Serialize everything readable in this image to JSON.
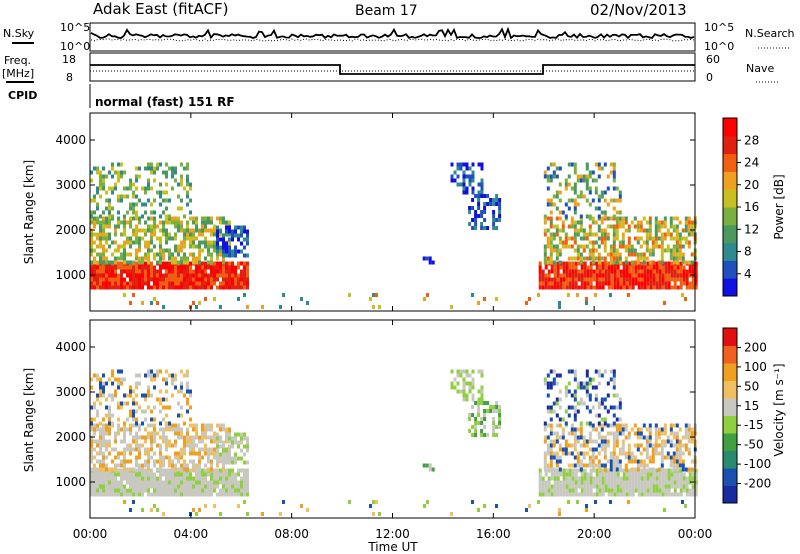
{
  "header": {
    "station": "Adak East (fitACF)",
    "beam": "Beam 17",
    "date": "02/Nov/2013"
  },
  "aux_panels": {
    "nsky_label": "N.Sky",
    "nsky_ticks": [
      "10^5",
      "10^0"
    ],
    "nsearch_label": "N.Search",
    "nsearch_ticks": [
      "10^5",
      "10^0"
    ],
    "freq_label_1": "Freq.",
    "freq_label_2": "[MHz]",
    "freq_ticks": [
      "18",
      "8"
    ],
    "nave_label": "Nave",
    "nave_ticks": [
      "60",
      "0"
    ],
    "cpid_label": "CPID",
    "cpid_value": "normal (fast) 151 RF"
  },
  "colors": {
    "power": [
      "#1010e0",
      "#2050c0",
      "#2f8a8f",
      "#4a9a60",
      "#7ab040",
      "#c8c020",
      "#f0a020",
      "#f06010",
      "#e02010",
      "#ff0000"
    ],
    "velocity": [
      "#1a2aa0",
      "#1a50b0",
      "#2a8a70",
      "#40a040",
      "#90d040",
      "#c8c8c0",
      "#f0c060",
      "#f0a020",
      "#f06020",
      "#e01010"
    ]
  },
  "chart_data": [
    {
      "type": "heatmap",
      "name_ref": "power",
      "xlabel": "",
      "ylabel": "Slant Range [km]",
      "ylim": [
        200,
        4600
      ],
      "yticks": [
        1000,
        2000,
        3000,
        4000
      ],
      "xlim": [
        0,
        24
      ],
      "grid": false,
      "colorbar": {
        "label": "Power [dB]",
        "ticks": [
          "28",
          "24",
          "20",
          "16",
          "12",
          "8",
          "4"
        ],
        "range": [
          0,
          30
        ]
      }
    },
    {
      "type": "heatmap",
      "name_ref": "velocity",
      "xlabel": "Time UT",
      "ylabel": "Slant Range [km]",
      "ylim": [
        200,
        4600
      ],
      "yticks": [
        1000,
        2000,
        3000,
        4000
      ],
      "xlim": [
        0,
        24
      ],
      "xticks": [
        "00:00",
        "04:00",
        "08:00",
        "12:00",
        "16:00",
        "20:00",
        "00:00"
      ],
      "grid": false,
      "colorbar": {
        "label": "Velocity [m s⁻¹]",
        "ticks": [
          "200",
          "100",
          "50",
          "15",
          "-15",
          "-50",
          "-100",
          "-200"
        ],
        "range": [
          -250,
          250
        ]
      }
    }
  ]
}
